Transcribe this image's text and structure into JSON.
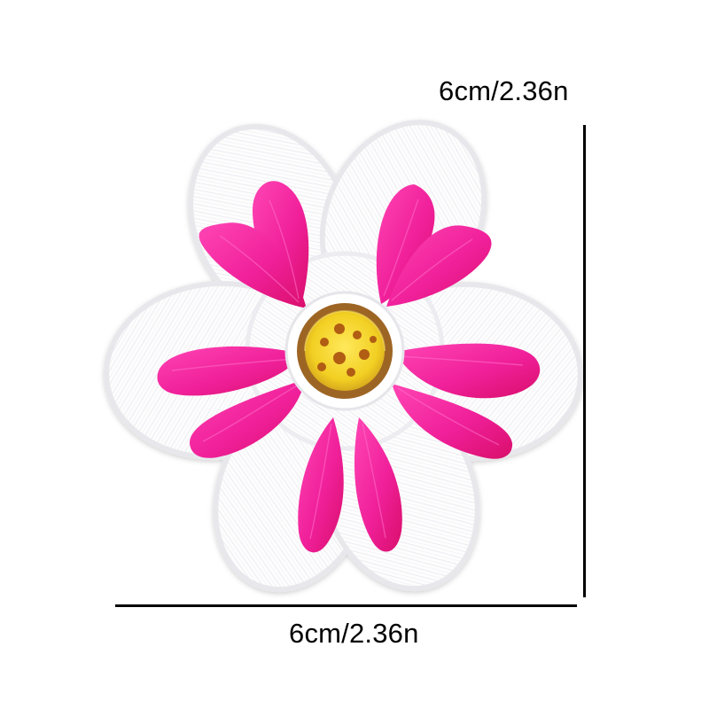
{
  "dimensions": {
    "height_label": "6cm/2.36n",
    "width_label": "6cm/2.36n"
  },
  "colors": {
    "background": "#ffffff",
    "patch_backing": "#fcfcfd",
    "patch_border": "#e8e8ec",
    "petal": "#f01f95",
    "petal_shadow": "#d70f69",
    "center_yellow": "#f3d52d",
    "center_ring": "#a76a24",
    "dimension_line": "#000000"
  }
}
